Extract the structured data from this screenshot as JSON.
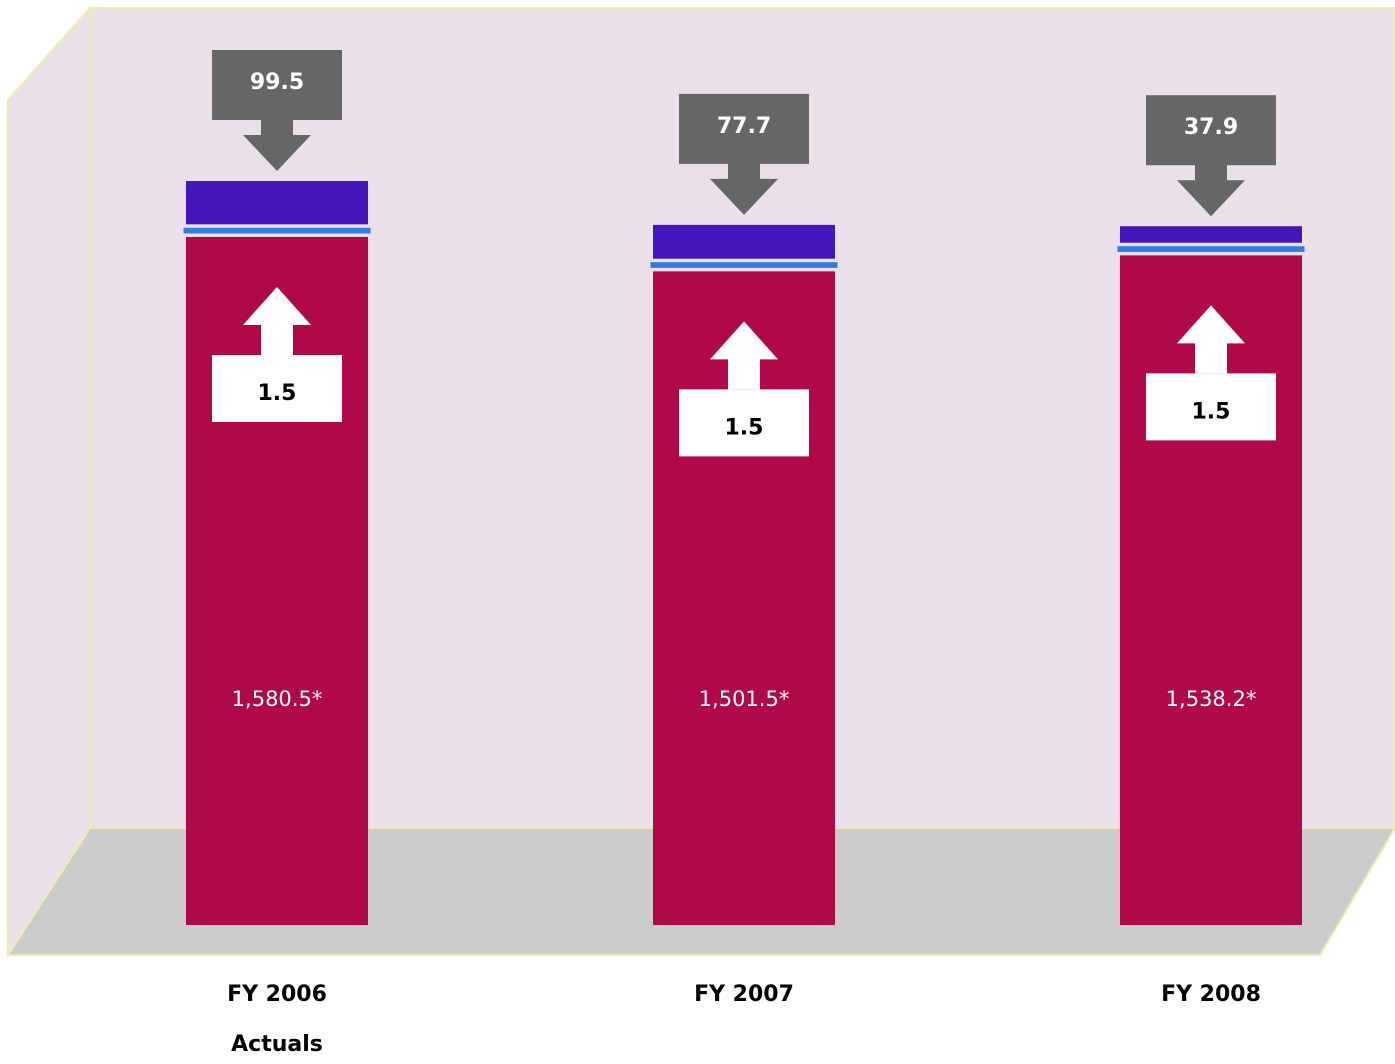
{
  "chart_data": {
    "type": "stacked_bar",
    "categories": [
      [
        "FY 2006",
        "Actuals"
      ],
      [
        "FY 2007"
      ],
      [
        "FY 2008"
      ]
    ],
    "series": [
      {
        "color": "#b0094a",
        "values": [
          1580.5,
          1501.5,
          1538.2
        ],
        "value_labels": [
          "1,580.5*",
          "1,501.5*",
          "1,538.2*"
        ]
      },
      {
        "color": "#2f7de0",
        "values": [
          1.5,
          1.5,
          1.5
        ]
      },
      {
        "color": "#4216b8",
        "values": [
          99.5,
          77.7,
          37.9
        ]
      }
    ]
  }
}
